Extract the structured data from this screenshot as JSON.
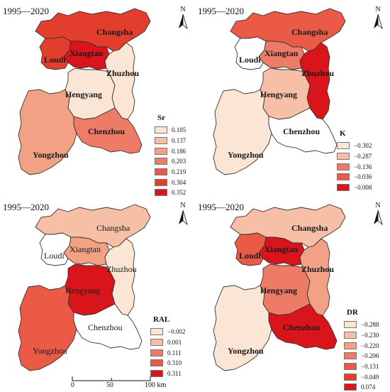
{
  "colors": {
    "c1": "#fbe5d4",
    "c2": "#f7c0a6",
    "c3": "#f2a184",
    "c4": "#ee7b66",
    "c5": "#ea5a47",
    "c6": "#e33d2e",
    "c7": "#d9141b",
    "border": "#333333"
  },
  "panels": [
    {
      "title": "1995—2020",
      "north": "N",
      "legend": {
        "title": "Sr",
        "values": [
          "0.105",
          "0.137",
          "0.186",
          "0.203",
          "0.219",
          "0.304",
          "0.352"
        ],
        "colors": [
          "c1",
          "c2",
          "c3",
          "c4",
          "c5",
          "c6",
          "c7"
        ]
      },
      "cities": {
        "Changsha": {
          "label": "Changsha",
          "fill": "c6"
        },
        "Loudi": {
          "label": "Loudi",
          "fill": "c6"
        },
        "Xiangtan": {
          "label": "Xiangtan",
          "fill": "c7"
        },
        "Zhuzhou": {
          "label": "Zhuzhou",
          "fill": "c1"
        },
        "Hengyang": {
          "label": "Hengyang",
          "fill": "c1"
        },
        "Chenzhou": {
          "label": "Chenzhou",
          "fill": "c4"
        },
        "Yongzhou": {
          "label": "Yongzhou",
          "fill": "c3"
        }
      }
    },
    {
      "title": "1995—2020",
      "north": "N",
      "legend": {
        "title": "K",
        "values": [
          "−0.302",
          "−0.287",
          "−0.136",
          "−0.036",
          "−0.008"
        ],
        "colors": [
          "c1",
          "c2",
          "c4",
          "c5",
          "c7"
        ]
      },
      "cities": {
        "Changsha": {
          "label": "Changsha",
          "fill": "c5"
        },
        "Loudi": {
          "label": "Loudi",
          "fill": "white"
        },
        "Xiangtan": {
          "label": "Xiangtan",
          "fill": "c4"
        },
        "Zhuzhou": {
          "label": "Zhuzhou",
          "fill": "c7"
        },
        "Hengyang": {
          "label": "Hengyang",
          "fill": "c2"
        },
        "Chenzhou": {
          "label": "Chenzhou",
          "fill": "white"
        },
        "Yongzhou": {
          "label": "Yongzhou",
          "fill": "c1"
        }
      }
    },
    {
      "title": "1995—2020",
      "north": "N",
      "legend": {
        "title": "RAL",
        "values": [
          "−0.002",
          "0.001",
          "0.111",
          "0.310",
          "0.311"
        ],
        "colors": [
          "c1",
          "c2",
          "c4",
          "c5",
          "c7"
        ]
      },
      "cities": {
        "Changsha": {
          "label": "Changsha",
          "fill": "c2"
        },
        "Loudi": {
          "label": "Loudi",
          "fill": "white"
        },
        "Xiangtan": {
          "label": "Xiangtan",
          "fill": "c3"
        },
        "Zhuzhou": {
          "label": "Zhuzhou",
          "fill": "c1"
        },
        "Hengyang": {
          "label": "Hengyang",
          "fill": "c7"
        },
        "Chenzhou": {
          "label": "Chenzhou",
          "fill": "white"
        },
        "Yongzhou": {
          "label": "Yongzhou",
          "fill": "c5"
        }
      },
      "scale": {
        "l0": "0",
        "l50": "50",
        "l100": "100 km"
      }
    },
    {
      "title": "1995—2020",
      "north": "N",
      "legend": {
        "title": "DR",
        "values": [
          "−0.288",
          "−0.230",
          "−0.220",
          "−0.206",
          "−0.131",
          "−0.049",
          "0.074"
        ],
        "colors": [
          "c1",
          "c2",
          "c3",
          "c4",
          "c5",
          "c6",
          "c7"
        ]
      },
      "cities": {
        "Changsha": {
          "label": "Changsha",
          "fill": "c2"
        },
        "Loudi": {
          "label": "Loudi",
          "fill": "c5"
        },
        "Xiangtan": {
          "label": "Xiangtan",
          "fill": "c7"
        },
        "Zhuzhou": {
          "label": "Zhuzhou",
          "fill": "c3"
        },
        "Hengyang": {
          "label": "Hengyang",
          "fill": "c4"
        },
        "Chenzhou": {
          "label": "Chenzhou",
          "fill": "c7"
        },
        "Yongzhou": {
          "label": "Yongzhou",
          "fill": "c1"
        }
      }
    }
  ]
}
